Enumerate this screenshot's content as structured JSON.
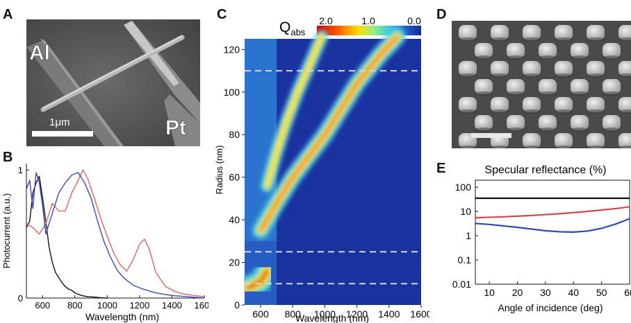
{
  "panels": {
    "A": {
      "letter": "A",
      "electrode_left": "Al",
      "electrode_right": "Pt",
      "scale_bar": "1μm"
    },
    "B": {
      "letter": "B"
    },
    "C": {
      "letter": "C"
    },
    "D": {
      "letter": "D"
    },
    "E": {
      "letter": "E"
    }
  },
  "chart_data": [
    {
      "panel": "B",
      "type": "line",
      "title": "",
      "xlabel": "Wavelength (nm)",
      "ylabel": "Photocurrent (a.u.)",
      "xlim": [
        500,
        1600
      ],
      "ylim": [
        0,
        1.05
      ],
      "x_ticks": [
        "600",
        "800",
        "1000",
        "1200",
        "1400",
        "1600"
      ],
      "x_tick_values": [
        600,
        800,
        1000,
        1200,
        1400,
        1600
      ],
      "y_ticks": [
        "0",
        "1"
      ],
      "y_tick_values": [
        0,
        1
      ],
      "series": [
        {
          "color": "#111111",
          "x": [
            500,
            520,
            540,
            560,
            580,
            600,
            620,
            640,
            660,
            680,
            700,
            720,
            740,
            760,
            780,
            800,
            820,
            840,
            860,
            880,
            900,
            940,
            980,
            1000
          ],
          "y": [
            0.55,
            0.6,
            0.82,
            0.9,
            0.95,
            0.78,
            0.6,
            0.4,
            0.28,
            0.2,
            0.16,
            0.12,
            0.09,
            0.07,
            0.06,
            0.04,
            0.03,
            0.02,
            0.015,
            0.01,
            0.01,
            0.005,
            0.0,
            0.0
          ]
        },
        {
          "color": "#e06060",
          "x": [
            500,
            540,
            580,
            620,
            660,
            700,
            740,
            780,
            820,
            850,
            880,
            920,
            960,
            1000,
            1040,
            1080,
            1120,
            1160,
            1200,
            1230,
            1260,
            1300,
            1360,
            1420,
            1480,
            1540,
            1600
          ],
          "y": [
            0.58,
            0.55,
            0.5,
            0.58,
            0.74,
            0.68,
            0.68,
            0.82,
            0.92,
            1.0,
            0.93,
            0.78,
            0.62,
            0.48,
            0.35,
            0.26,
            0.21,
            0.3,
            0.42,
            0.46,
            0.38,
            0.2,
            0.09,
            0.05,
            0.03,
            0.02,
            0.01
          ]
        },
        {
          "color": "#3c46b4",
          "x": [
            500,
            520,
            540,
            560,
            580,
            600,
            620,
            660,
            700,
            740,
            780,
            820,
            860,
            900,
            940,
            980,
            1020,
            1060,
            1100,
            1160,
            1220,
            1300,
            1400,
            1500,
            1600
          ],
          "y": [
            0.85,
            0.92,
            0.7,
            0.98,
            0.9,
            0.72,
            0.5,
            0.66,
            0.82,
            0.9,
            0.96,
            0.98,
            0.9,
            0.78,
            0.6,
            0.44,
            0.32,
            0.22,
            0.16,
            0.1,
            0.07,
            0.04,
            0.02,
            0.01,
            0.0
          ]
        }
      ]
    },
    {
      "panel": "C",
      "type": "heatmap",
      "title": "Q_abs",
      "title_main": "Q",
      "title_sub": "abs",
      "xlabel": "Wavelength (nm)",
      "ylabel": "Radius (nm)",
      "xlim": [
        500,
        1600
      ],
      "ylim": [
        0,
        125
      ],
      "x_ticks": [
        "600",
        "800",
        "1000",
        "1200",
        "1400",
        "1600"
      ],
      "x_tick_values": [
        600,
        800,
        1000,
        1200,
        1400,
        1600
      ],
      "y_ticks": [
        "0",
        "20",
        "40",
        "60",
        "80",
        "100",
        "120"
      ],
      "y_tick_values": [
        0,
        20,
        40,
        60,
        80,
        100,
        120
      ],
      "colorbar": {
        "range": [
          2.0,
          0.0
        ],
        "ticks": [
          "2.0",
          "1.0",
          "0.0"
        ]
      },
      "dashed_lines_radius": [
        10,
        25,
        110
      ],
      "bands": [
        {
          "points": [
            [
              520,
              8
            ],
            [
              600,
              11
            ],
            [
              640,
              16
            ]
          ],
          "strength": 1.0,
          "width_nm": 55
        },
        {
          "points": [
            [
              600,
              35
            ],
            [
              700,
              48
            ],
            [
              800,
              60
            ],
            [
              900,
              70
            ],
            [
              1000,
              80
            ],
            [
              1100,
              92
            ],
            [
              1200,
              104
            ],
            [
              1350,
              118
            ],
            [
              1450,
              126
            ]
          ],
          "strength": 0.75,
          "width_nm": 45
        },
        {
          "points": [
            [
              640,
              56
            ],
            [
              700,
              72
            ],
            [
              760,
              86
            ],
            [
              830,
              100
            ],
            [
              900,
              112
            ],
            [
              980,
              126
            ]
          ],
          "strength": 0.45,
          "width_nm": 40
        }
      ]
    },
    {
      "panel": "E",
      "type": "line",
      "title": "Specular reflectance (%)",
      "xlabel": "Angle of incidence (deg)",
      "ylabel": "",
      "yscale": "log",
      "xlim": [
        5,
        60
      ],
      "ylim": [
        0.01,
        100
      ],
      "x_ticks": [
        "10",
        "20",
        "30",
        "40",
        "50",
        "60"
      ],
      "x_tick_values": [
        10,
        20,
        30,
        40,
        50,
        60
      ],
      "y_ticks": [
        "0.01",
        "0.1",
        "1",
        "10",
        "100"
      ],
      "y_tick_values": [
        0.01,
        0.1,
        1,
        10,
        100
      ],
      "series": [
        {
          "color": "#111111",
          "x": [
            5,
            20,
            40,
            60
          ],
          "y": [
            35,
            35,
            35,
            35
          ]
        },
        {
          "color": "#d04848",
          "x": [
            5,
            15,
            25,
            35,
            45,
            55,
            60
          ],
          "y": [
            5.5,
            6.0,
            6.8,
            8.0,
            10.0,
            13.0,
            15.5
          ]
        },
        {
          "color": "#2d46b4",
          "x": [
            5,
            10,
            20,
            30,
            35,
            40,
            45,
            50,
            55,
            60
          ],
          "y": [
            3.2,
            2.9,
            2.2,
            1.6,
            1.45,
            1.4,
            1.55,
            2.0,
            3.0,
            5.0
          ]
        }
      ]
    }
  ]
}
